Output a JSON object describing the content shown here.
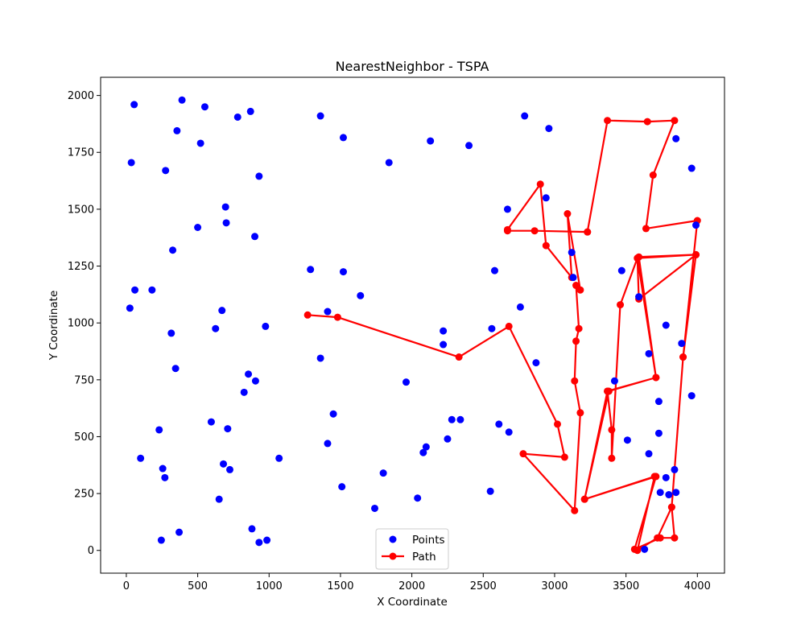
{
  "chart_data": {
    "type": "scatter",
    "title": "NearestNeighbor - TSPA",
    "xlabel": "X Coordinate",
    "ylabel": "Y Coordinate",
    "xlim": [
      -180,
      4190
    ],
    "ylim": [
      -100,
      2080
    ],
    "xticks": [
      0,
      500,
      1000,
      1500,
      2000,
      2500,
      3000,
      3500,
      4000
    ],
    "yticks": [
      0,
      250,
      500,
      750,
      1000,
      1250,
      1500,
      1750,
      2000
    ],
    "xtick_labels": [
      "0",
      "500",
      "1000",
      "1500",
      "2000",
      "2500",
      "3000",
      "3500",
      "4000"
    ],
    "ytick_labels": [
      "0",
      "250",
      "500",
      "750",
      "1000",
      "1250",
      "1500",
      "1750",
      "2000"
    ],
    "grid": false,
    "legend_position": "lower-center",
    "colors": {
      "points": "#0000ff",
      "path": "#ff0000"
    },
    "series": [
      {
        "name": "Points",
        "type": "scatter",
        "points": [
          [
            55,
            1960
          ],
          [
            390,
            1980
          ],
          [
            550,
            1950
          ],
          [
            180,
            1145
          ],
          [
            25,
            1065
          ],
          [
            355,
            1845
          ],
          [
            520,
            1790
          ],
          [
            275,
            1670
          ],
          [
            35,
            1705
          ],
          [
            60,
            1145
          ],
          [
            325,
            1320
          ],
          [
            500,
            1420
          ],
          [
            695,
            1510
          ],
          [
            700,
            1440
          ],
          [
            930,
            1645
          ],
          [
            900,
            1380
          ],
          [
            780,
            1905
          ],
          [
            870,
            1930
          ],
          [
            1360,
            1910
          ],
          [
            1520,
            1815
          ],
          [
            1840,
            1705
          ],
          [
            1290,
            1235
          ],
          [
            1520,
            1225
          ],
          [
            1640,
            1120
          ],
          [
            975,
            985
          ],
          [
            1410,
            1050
          ],
          [
            670,
            1055
          ],
          [
            625,
            975
          ],
          [
            315,
            955
          ],
          [
            345,
            800
          ],
          [
            230,
            530
          ],
          [
            595,
            565
          ],
          [
            710,
            535
          ],
          [
            855,
            775
          ],
          [
            905,
            745
          ],
          [
            825,
            695
          ],
          [
            1360,
            845
          ],
          [
            1450,
            600
          ],
          [
            1410,
            470
          ],
          [
            1070,
            405
          ],
          [
            1800,
            340
          ],
          [
            1740,
            185
          ],
          [
            1510,
            280
          ],
          [
            255,
            360
          ],
          [
            270,
            320
          ],
          [
            100,
            405
          ],
          [
            680,
            380
          ],
          [
            725,
            355
          ],
          [
            650,
            225
          ],
          [
            370,
            80
          ],
          [
            245,
            45
          ],
          [
            880,
            95
          ],
          [
            930,
            35
          ],
          [
            985,
            45
          ],
          [
            1960,
            740
          ],
          [
            2040,
            230
          ],
          [
            2080,
            430
          ],
          [
            2100,
            455
          ],
          [
            2220,
            965
          ],
          [
            2220,
            905
          ],
          [
            2250,
            490
          ],
          [
            2280,
            575
          ],
          [
            2340,
            575
          ],
          [
            2130,
            1800
          ],
          [
            2400,
            1780
          ],
          [
            2560,
            975
          ],
          [
            2580,
            1230
          ],
          [
            2610,
            555
          ],
          [
            2680,
            520
          ],
          [
            2550,
            260
          ],
          [
            2670,
            1500
          ],
          [
            2760,
            1070
          ],
          [
            2790,
            1910
          ],
          [
            2870,
            825
          ],
          [
            2960,
            1855
          ],
          [
            2940,
            1550
          ],
          [
            3120,
            1310
          ],
          [
            3130,
            1200
          ],
          [
            3470,
            1230
          ],
          [
            3590,
            1115
          ],
          [
            3660,
            865
          ],
          [
            3420,
            745
          ],
          [
            3510,
            485
          ],
          [
            3660,
            425
          ],
          [
            3730,
            655
          ],
          [
            3730,
            515
          ],
          [
            3780,
            990
          ],
          [
            3850,
            1810
          ],
          [
            3960,
            1680
          ],
          [
            3890,
            910
          ],
          [
            3960,
            680
          ],
          [
            3990,
            1430
          ],
          [
            3840,
            355
          ],
          [
            3780,
            320
          ],
          [
            3740,
            255
          ],
          [
            3800,
            245
          ],
          [
            3850,
            255
          ],
          [
            3630,
            5
          ]
        ]
      },
      {
        "name": "Path",
        "type": "line",
        "points": [
          [
            1270,
            1035
          ],
          [
            1480,
            1025
          ],
          [
            2330,
            850
          ],
          [
            2680,
            985
          ],
          [
            3020,
            555
          ],
          [
            3070,
            410
          ],
          [
            2780,
            425
          ],
          [
            3140,
            175
          ],
          [
            3180,
            605
          ],
          [
            3140,
            745
          ],
          [
            3150,
            920
          ],
          [
            3170,
            975
          ],
          [
            3150,
            1165
          ],
          [
            3180,
            1145
          ],
          [
            3090,
            1480
          ],
          [
            3120,
            1200
          ],
          [
            2940,
            1340
          ],
          [
            2900,
            1610
          ],
          [
            2670,
            1410
          ],
          [
            2670,
            1405
          ],
          [
            2860,
            1405
          ],
          [
            3230,
            1400
          ],
          [
            3230,
            1400
          ],
          [
            3370,
            1890
          ],
          [
            3650,
            1885
          ],
          [
            3840,
            1890
          ],
          [
            3690,
            1650
          ],
          [
            3640,
            1415
          ],
          [
            4000,
            1450
          ],
          [
            3900,
            850
          ],
          [
            3820,
            190
          ],
          [
            3840,
            55
          ],
          [
            3740,
            55
          ],
          [
            3560,
            5
          ],
          [
            3710,
            325
          ],
          [
            3210,
            225
          ],
          [
            3370,
            700
          ],
          [
            3710,
            760
          ],
          [
            3580,
            1285
          ],
          [
            3990,
            1300
          ],
          [
            3900,
            850
          ],
          [
            3820,
            190
          ],
          [
            3720,
            55
          ],
          [
            3580,
            0
          ],
          [
            3700,
            325
          ],
          [
            3210,
            225
          ],
          [
            3380,
            700
          ],
          [
            3710,
            760
          ],
          [
            3590,
            1290
          ],
          [
            3990,
            1300
          ],
          [
            3590,
            1105
          ],
          [
            3580,
            1285
          ],
          [
            3460,
            1080
          ],
          [
            3400,
            405
          ],
          [
            3400,
            530
          ],
          [
            3370,
            700
          ]
        ]
      }
    ]
  }
}
